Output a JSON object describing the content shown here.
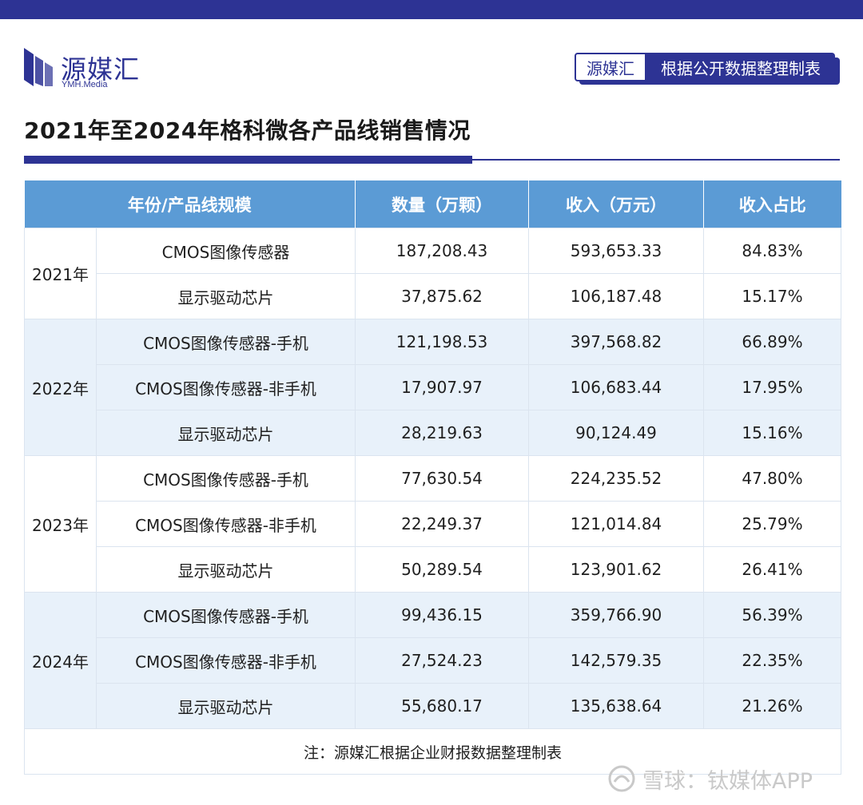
{
  "brand": {
    "name": "源媒汇",
    "sub": "YMH.Media",
    "color": "#2d3394"
  },
  "badge": {
    "left": "源媒汇",
    "right": "根据公开数据整理制表"
  },
  "title": "2021年至2024年格科微各产品线销售情况",
  "table": {
    "headers": [
      "年份/产品线规模",
      "数量（万颗）",
      "收入（万元）",
      "收入占比"
    ],
    "groups": [
      {
        "year": "2021年",
        "rows": [
          {
            "product": "CMOS图像传感器",
            "qty": "187,208.43",
            "revenue": "593,653.33",
            "ratio": "84.83%"
          },
          {
            "product": "显示驱动芯片",
            "qty": "37,875.62",
            "revenue": "106,187.48",
            "ratio": "15.17%"
          }
        ]
      },
      {
        "year": "2022年",
        "rows": [
          {
            "product": "CMOS图像传感器-手机",
            "qty": "121,198.53",
            "revenue": "397,568.82",
            "ratio": "66.89%"
          },
          {
            "product": "CMOS图像传感器-非手机",
            "qty": "17,907.97",
            "revenue": "106,683.44",
            "ratio": "17.95%"
          },
          {
            "product": "显示驱动芯片",
            "qty": "28,219.63",
            "revenue": "90,124.49",
            "ratio": "15.16%"
          }
        ]
      },
      {
        "year": "2023年",
        "rows": [
          {
            "product": "CMOS图像传感器-手机",
            "qty": "77,630.54",
            "revenue": "224,235.52",
            "ratio": "47.80%"
          },
          {
            "product": "CMOS图像传感器-非手机",
            "qty": "22,249.37",
            "revenue": "121,014.84",
            "ratio": "25.79%"
          },
          {
            "product": "显示驱动芯片",
            "qty": "50,289.54",
            "revenue": "123,901.62",
            "ratio": "26.41%"
          }
        ]
      },
      {
        "year": "2024年",
        "rows": [
          {
            "product": "CMOS图像传感器-手机",
            "qty": "99,436.15",
            "revenue": "359,766.90",
            "ratio": "56.39%"
          },
          {
            "product": "CMOS图像传感器-非手机",
            "qty": "27,524.23",
            "revenue": "142,579.35",
            "ratio": "22.35%"
          },
          {
            "product": "显示驱动芯片",
            "qty": "55,680.17",
            "revenue": "135,638.64",
            "ratio": "21.26%"
          }
        ]
      }
    ],
    "note": "注：源媒汇根据企业财报数据整理制表"
  },
  "watermark": {
    "text": "雪球：钛媒体APP",
    "icon": "snowball-icon"
  }
}
